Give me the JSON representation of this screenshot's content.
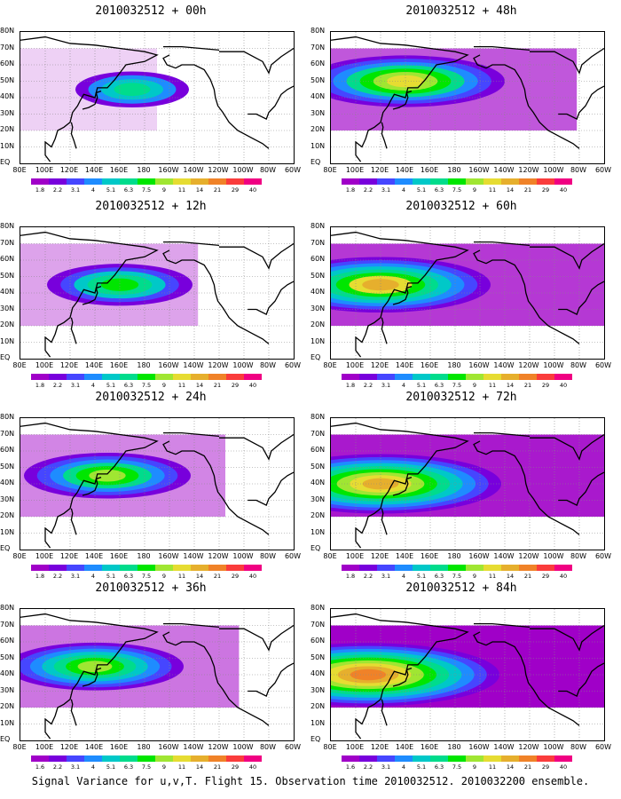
{
  "panels": [
    {
      "title": "2010032512 + 00h",
      "intensity": 0.15,
      "center_lon": 170,
      "center_lat": 45
    },
    {
      "title": "2010032512 + 48h",
      "intensity": 0.55,
      "center_lon": 140,
      "center_lat": 50
    },
    {
      "title": "2010032512 + 12h",
      "intensity": 0.3,
      "center_lon": 160,
      "center_lat": 45
    },
    {
      "title": "2010032512 + 60h",
      "intensity": 0.65,
      "center_lon": 120,
      "center_lat": 45
    },
    {
      "title": "2010032512 + 24h",
      "intensity": 0.4,
      "center_lon": 150,
      "center_lat": 45
    },
    {
      "title": "2010032512 + 72h",
      "intensity": 0.75,
      "center_lon": 120,
      "center_lat": 40
    },
    {
      "title": "2010032512 + 36h",
      "intensity": 0.45,
      "center_lon": 140,
      "center_lat": 45
    },
    {
      "title": "2010032512 + 84h",
      "intensity": 0.85,
      "center_lon": 110,
      "center_lat": 40
    }
  ],
  "lat_labels": [
    "80N",
    "70N",
    "60N",
    "50N",
    "40N",
    "30N",
    "20N",
    "10N",
    "EQ"
  ],
  "lon_labels": [
    "80E",
    "100E",
    "120E",
    "140E",
    "160E",
    "180",
    "160W",
    "140W",
    "120W",
    "100W",
    "80W",
    "60W"
  ],
  "colorbar": {
    "labels": [
      "1.8",
      "2.2",
      "3.1",
      "4",
      "5.1",
      "6.3",
      "7.5",
      "9",
      "11",
      "14",
      "21",
      "29",
      "40"
    ],
    "colors": [
      "#a000c8",
      "#7800dc",
      "#4646ff",
      "#1e8cff",
      "#00c8c8",
      "#00dc8c",
      "#00e600",
      "#a0e632",
      "#e6dc32",
      "#e6af2d",
      "#f08228",
      "#fa3c3c",
      "#f00082"
    ]
  },
  "colorbar_alt_first_label": "1.6",
  "footer": "Signal Variance for u,v,T. Flight 15. Observation time 2010032512. 2010032200 ensemble."
}
